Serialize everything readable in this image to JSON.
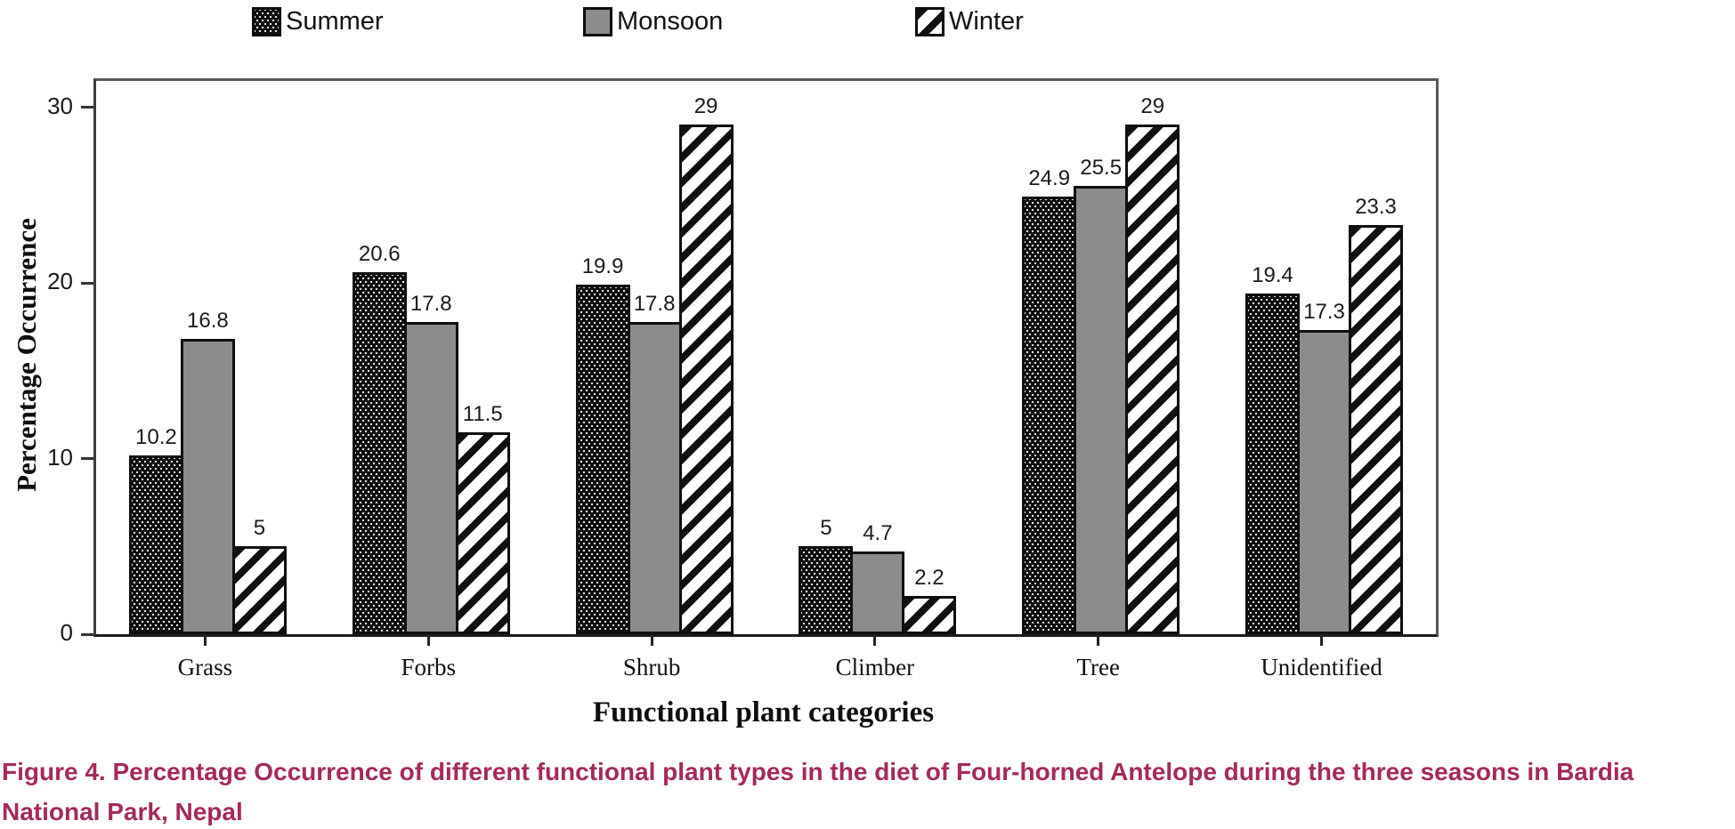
{
  "chart_data": {
    "type": "bar",
    "categories": [
      "Grass",
      "Forbs",
      "Shrub",
      "Climber",
      "Tree",
      "Unidentified"
    ],
    "series": [
      {
        "name": "Summer",
        "pattern": "dotted-black",
        "values": [
          10.2,
          20.6,
          19.9,
          5,
          24.9,
          19.4
        ],
        "labels": [
          "10.2",
          "20.6",
          "19.9",
          "5",
          "24.9",
          "19.4"
        ]
      },
      {
        "name": "Monsoon",
        "pattern": "solid-gray",
        "values": [
          16.8,
          17.8,
          17.8,
          4.7,
          25.5,
          17.3
        ],
        "labels": [
          "16.8",
          "17.8",
          "17.8",
          "4.7",
          "25.5",
          "17.3"
        ]
      },
      {
        "name": "Winter",
        "pattern": "diagonal-stripes",
        "values": [
          5,
          11.5,
          29,
          2.2,
          29,
          23.3
        ],
        "labels": [
          "5",
          "11.5",
          "29",
          "2.2",
          "29",
          "23.3"
        ]
      }
    ],
    "xlabel": "Functional plant categories",
    "ylabel": "Percentage Occurrence",
    "yticks": [
      0,
      10,
      20,
      30
    ],
    "ylim": [
      0,
      31.5
    ],
    "grid": false,
    "legend_position": "top"
  },
  "caption": {
    "text": "Figure 4. Percentage Occurrence of different functional plant types in the diet of Four-horned Antelope during the three seasons in Bardia National Park, Nepal",
    "color": "#A52A5C"
  },
  "colors": {
    "monsoon_fill": "#8c8c8c",
    "bar_border": "#0f0f0f",
    "frame": "#575757"
  }
}
